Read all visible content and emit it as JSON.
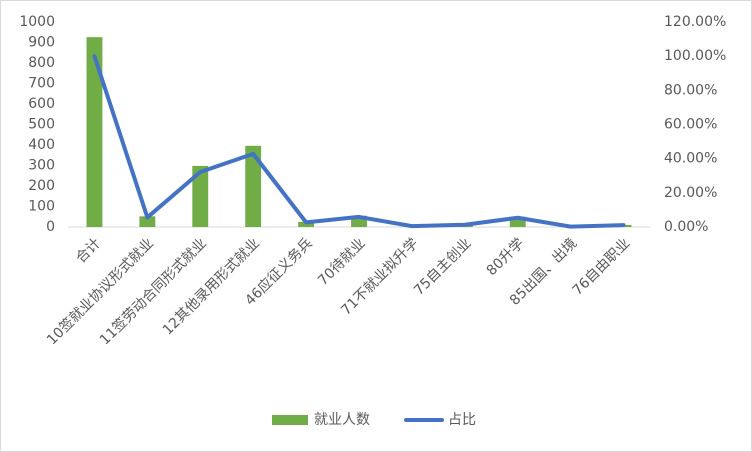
{
  "chart_data": {
    "type": "bar-line",
    "categories": [
      "合计",
      "10签就业协议形式就业",
      "11签劳动合同形式就业",
      "12其他录用形式就业",
      "46应征义务兵",
      "70待就业",
      "71不就业拟升学",
      "75自主创业",
      "80升学",
      "85出国、出境",
      "76自由职业"
    ],
    "series": [
      {
        "name": "就业人数",
        "type": "bar",
        "color": "#70ad47",
        "values": [
          926,
          52,
          298,
          396,
          25,
          55,
          5,
          12,
          50,
          2,
          10
        ]
      },
      {
        "name": "占比",
        "type": "line",
        "axis": "y2",
        "color": "#4472c4",
        "values": [
          100,
          5.6,
          32.2,
          42.8,
          2.7,
          5.9,
          0.5,
          1.3,
          5.4,
          0.2,
          1.1
        ]
      }
    ],
    "ylim": [
      0,
      1000
    ],
    "yticks": [
      0,
      100,
      200,
      300,
      400,
      500,
      600,
      700,
      800,
      900,
      1000
    ],
    "y2lim": [
      0,
      120
    ],
    "y2ticks": [
      {
        "value": 0,
        "label": "0.00%"
      },
      {
        "value": 20,
        "label": "20.00%"
      },
      {
        "value": 40,
        "label": "40.00%"
      },
      {
        "value": 60,
        "label": "60.00%"
      },
      {
        "value": 80,
        "label": "80.00%"
      },
      {
        "value": 100,
        "label": "100.00%"
      },
      {
        "value": 120,
        "label": "120.00%"
      }
    ],
    "grid": false,
    "legend": "bottom"
  }
}
